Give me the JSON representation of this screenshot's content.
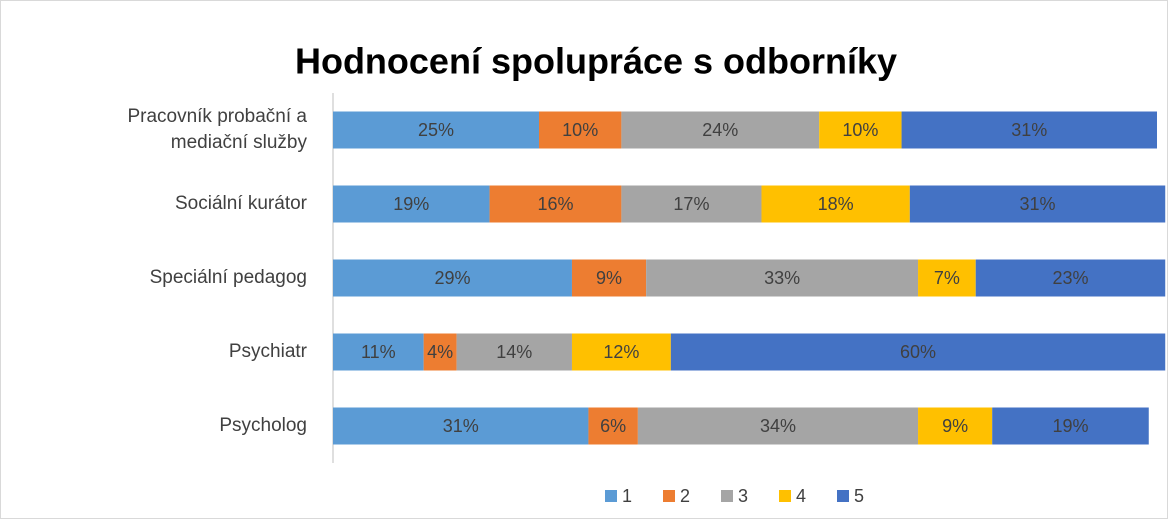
{
  "chart_data": {
    "type": "stacked-bar-horizontal",
    "title": "Hodnocení spolupráce s odborníky",
    "categories": [
      "Pracovník probační a mediační služby",
      "Sociální kurátor",
      "Speciální pedagog",
      "Psychiatr",
      "Psycholog"
    ],
    "xlim": [
      0,
      100
    ],
    "legend": "bottom",
    "series": [
      {
        "name": "1",
        "color": "#5b9bd5",
        "values": [
          25,
          19,
          29,
          11,
          31
        ],
        "value_labels": [
          "25%",
          "19%",
          "29%",
          "11%",
          "31%"
        ]
      },
      {
        "name": "2",
        "color": "#ed7d31",
        "values": [
          10,
          16,
          9,
          4,
          6
        ],
        "value_labels": [
          "10%",
          "16%",
          "9%",
          "4%",
          "6%"
        ]
      },
      {
        "name": "3",
        "color": "#a5a5a5",
        "values": [
          24,
          17,
          33,
          14,
          34
        ],
        "value_labels": [
          "24%",
          "17%",
          "33%",
          "14%",
          "34%"
        ]
      },
      {
        "name": "4",
        "color": "#ffc000",
        "values": [
          10,
          18,
          7,
          12,
          9
        ],
        "value_labels": [
          "10%",
          "18%",
          "7%",
          "12%",
          "9%"
        ]
      },
      {
        "name": "5",
        "color": "#4472c4",
        "values": [
          31,
          31,
          23,
          60,
          19
        ],
        "value_labels": [
          "31%",
          "31%",
          "23%",
          "60%",
          "19%"
        ]
      }
    ]
  }
}
